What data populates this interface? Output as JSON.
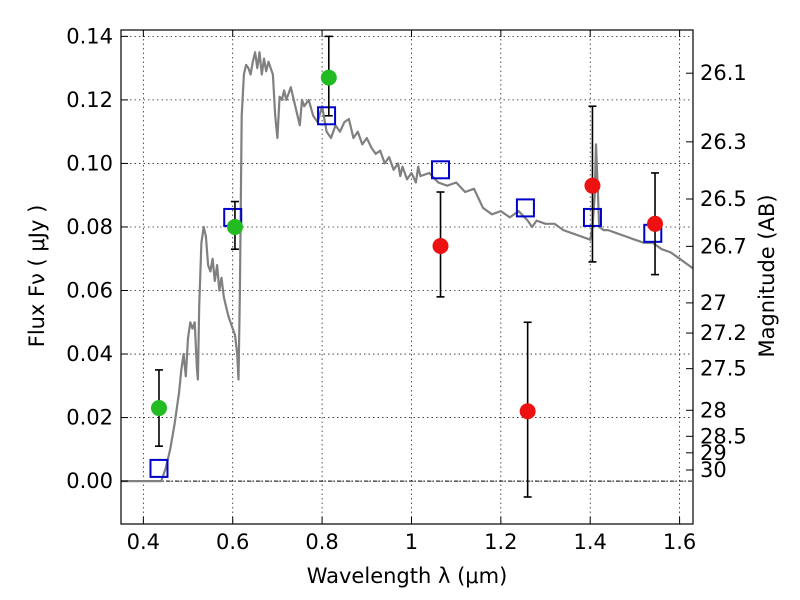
{
  "chart_data": {
    "type": "scatter",
    "xlabel": "Wavelength  λ (μm)",
    "ylabel": "Flux  Fν  ( μJy )",
    "ylabel_right": "Magnitude (AB)",
    "xlim": [
      0.35,
      1.63
    ],
    "ylim": [
      -0.0135,
      0.142
    ],
    "x_ticks": [
      0.4,
      0.6,
      0.8,
      1.0,
      1.2,
      1.4,
      1.6
    ],
    "x_tick_labels": [
      "0.4",
      "0.6",
      "0.8",
      "1",
      "1.2",
      "1.4",
      "1.6"
    ],
    "y_ticks": [
      0.0,
      0.02,
      0.04,
      0.06,
      0.08,
      0.1,
      0.12,
      0.14
    ],
    "y_tick_labels": [
      "0.00",
      "0.02",
      "0.04",
      "0.06",
      "0.08",
      "0.10",
      "0.12",
      "0.14"
    ],
    "right_ticks": [
      {
        "label": "26.1",
        "flux": 0.1284
      },
      {
        "label": "26.3",
        "flux": 0.1068
      },
      {
        "label": "26.5",
        "flux": 0.0888
      },
      {
        "label": "26.7",
        "flux": 0.0739
      },
      {
        "label": "27",
        "flux": 0.0561
      },
      {
        "label": "27.2",
        "flux": 0.0466
      },
      {
        "label": "27.5",
        "flux": 0.0354
      },
      {
        "label": "28",
        "flux": 0.0223
      },
      {
        "label": "28.5",
        "flux": 0.0141
      },
      {
        "label": "29",
        "flux": 0.0089
      },
      {
        "label": "30",
        "flux": 0.0035
      }
    ],
    "grid": true,
    "series": [
      {
        "type": "line",
        "color": "#808080",
        "points": [
          [
            0.35,
            0.0
          ],
          [
            0.44,
            0.0
          ],
          [
            0.45,
            0.004
          ],
          [
            0.46,
            0.01
          ],
          [
            0.47,
            0.018
          ],
          [
            0.48,
            0.028
          ],
          [
            0.485,
            0.035
          ],
          [
            0.49,
            0.04
          ],
          [
            0.495,
            0.033
          ],
          [
            0.5,
            0.045
          ],
          [
            0.505,
            0.05
          ],
          [
            0.51,
            0.048
          ],
          [
            0.515,
            0.05
          ],
          [
            0.52,
            0.035
          ],
          [
            0.522,
            0.032
          ],
          [
            0.525,
            0.055
          ],
          [
            0.53,
            0.075
          ],
          [
            0.535,
            0.08
          ],
          [
            0.54,
            0.077
          ],
          [
            0.545,
            0.068
          ],
          [
            0.55,
            0.066
          ],
          [
            0.555,
            0.07
          ],
          [
            0.56,
            0.063
          ],
          [
            0.565,
            0.068
          ],
          [
            0.57,
            0.06
          ],
          [
            0.575,
            0.064
          ],
          [
            0.58,
            0.058
          ],
          [
            0.585,
            0.055
          ],
          [
            0.59,
            0.052
          ],
          [
            0.595,
            0.05
          ],
          [
            0.6,
            0.048
          ],
          [
            0.605,
            0.046
          ],
          [
            0.61,
            0.04
          ],
          [
            0.613,
            0.032
          ],
          [
            0.616,
            0.06
          ],
          [
            0.62,
            0.115
          ],
          [
            0.625,
            0.128
          ],
          [
            0.63,
            0.131
          ],
          [
            0.635,
            0.13
          ],
          [
            0.64,
            0.128
          ],
          [
            0.645,
            0.132
          ],
          [
            0.65,
            0.135
          ],
          [
            0.655,
            0.13
          ],
          [
            0.66,
            0.135
          ],
          [
            0.665,
            0.128
          ],
          [
            0.67,
            0.133
          ],
          [
            0.675,
            0.129
          ],
          [
            0.68,
            0.132
          ],
          [
            0.69,
            0.128
          ],
          [
            0.695,
            0.115
          ],
          [
            0.7,
            0.108
          ],
          [
            0.705,
            0.121
          ],
          [
            0.71,
            0.12
          ],
          [
            0.715,
            0.123
          ],
          [
            0.72,
            0.12
          ],
          [
            0.73,
            0.124
          ],
          [
            0.74,
            0.118
          ],
          [
            0.75,
            0.112
          ],
          [
            0.755,
            0.12
          ],
          [
            0.76,
            0.118
          ],
          [
            0.77,
            0.12
          ],
          [
            0.78,
            0.115
          ],
          [
            0.79,
            0.113
          ],
          [
            0.8,
            0.118
          ],
          [
            0.81,
            0.11
          ],
          [
            0.82,
            0.108
          ],
          [
            0.83,
            0.112
          ],
          [
            0.84,
            0.11
          ],
          [
            0.85,
            0.113
          ],
          [
            0.86,
            0.114
          ],
          [
            0.87,
            0.108
          ],
          [
            0.88,
            0.11
          ],
          [
            0.89,
            0.106
          ],
          [
            0.9,
            0.108
          ],
          [
            0.91,
            0.105
          ],
          [
            0.92,
            0.103
          ],
          [
            0.93,
            0.104
          ],
          [
            0.94,
            0.1
          ],
          [
            0.95,
            0.102
          ],
          [
            0.96,
            0.098
          ],
          [
            0.97,
            0.1
          ],
          [
            0.975,
            0.096
          ],
          [
            0.98,
            0.099
          ],
          [
            0.99,
            0.095
          ],
          [
            1.0,
            0.097
          ],
          [
            1.01,
            0.094
          ],
          [
            1.015,
            0.099
          ],
          [
            1.02,
            0.096
          ],
          [
            1.04,
            0.097
          ],
          [
            1.06,
            0.094
          ],
          [
            1.08,
            0.093
          ],
          [
            1.1,
            0.094
          ],
          [
            1.12,
            0.091
          ],
          [
            1.14,
            0.092
          ],
          [
            1.16,
            0.086
          ],
          [
            1.18,
            0.084
          ],
          [
            1.2,
            0.085
          ],
          [
            1.22,
            0.083
          ],
          [
            1.24,
            0.085
          ],
          [
            1.26,
            0.082
          ],
          [
            1.27,
            0.08
          ],
          [
            1.28,
            0.082
          ],
          [
            1.3,
            0.081
          ],
          [
            1.32,
            0.081
          ],
          [
            1.34,
            0.079
          ],
          [
            1.36,
            0.078
          ],
          [
            1.38,
            0.077
          ],
          [
            1.4,
            0.076
          ],
          [
            1.405,
            0.08
          ],
          [
            1.41,
            0.09
          ],
          [
            1.413,
            0.106
          ],
          [
            1.416,
            0.095
          ],
          [
            1.42,
            0.08
          ],
          [
            1.43,
            0.079
          ],
          [
            1.44,
            0.079
          ],
          [
            1.46,
            0.078
          ],
          [
            1.48,
            0.077
          ],
          [
            1.5,
            0.076
          ],
          [
            1.52,
            0.075
          ],
          [
            1.54,
            0.075
          ],
          [
            1.56,
            0.073
          ],
          [
            1.58,
            0.072
          ],
          [
            1.6,
            0.07
          ],
          [
            1.62,
            0.068
          ],
          [
            1.63,
            0.067
          ]
        ]
      },
      {
        "type": "scatter",
        "marker": "square-open",
        "color": "#0000cc",
        "points": [
          [
            0.435,
            0.004
          ],
          [
            0.6,
            0.083
          ],
          [
            0.81,
            0.115
          ],
          [
            1.065,
            0.098
          ],
          [
            1.255,
            0.086
          ],
          [
            1.405,
            0.083
          ],
          [
            1.54,
            0.078
          ]
        ]
      },
      {
        "type": "scatter",
        "marker": "circle",
        "color": "#22bb22",
        "points": [
          {
            "x": 0.435,
            "y": 0.023,
            "err_low": 0.011,
            "err_high": 0.035
          },
          {
            "x": 0.605,
            "y": 0.08,
            "err_low": 0.073,
            "err_high": 0.088
          },
          {
            "x": 0.815,
            "y": 0.127,
            "err_low": 0.115,
            "err_high": 0.14
          }
        ]
      },
      {
        "type": "scatter",
        "marker": "circle",
        "color": "#ee1111",
        "points": [
          {
            "x": 1.065,
            "y": 0.074,
            "err_low": 0.058,
            "err_high": 0.091
          },
          {
            "x": 1.26,
            "y": 0.022,
            "err_low": -0.005,
            "err_high": 0.05
          },
          {
            "x": 1.405,
            "y": 0.093,
            "err_low": 0.069,
            "err_high": 0.118
          },
          {
            "x": 1.545,
            "y": 0.081,
            "err_low": 0.065,
            "err_high": 0.097
          }
        ]
      }
    ]
  }
}
